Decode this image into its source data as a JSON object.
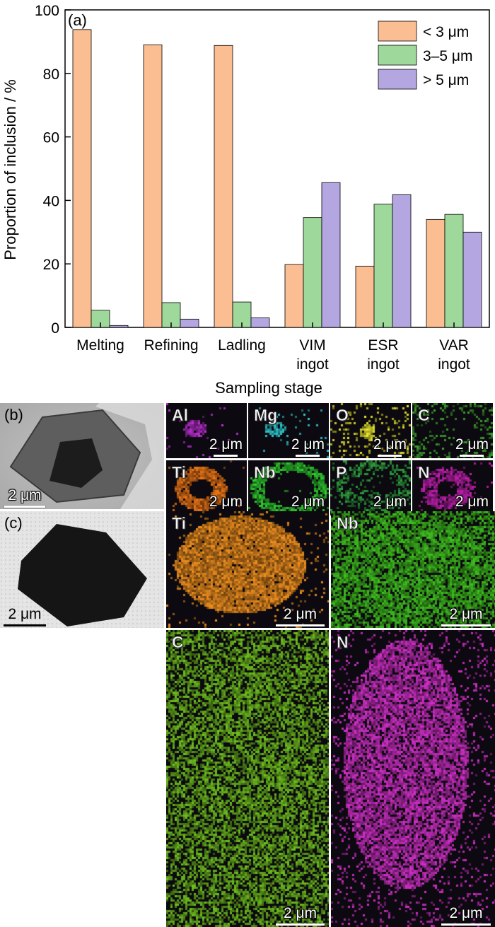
{
  "chart_data": {
    "type": "bar",
    "panel_label": "(a)",
    "categories": [
      [
        "Melting"
      ],
      [
        "Refining"
      ],
      [
        "Ladling"
      ],
      [
        "VIM",
        "ingot"
      ],
      [
        "ESR",
        "ingot"
      ],
      [
        "VAR",
        "ingot"
      ]
    ],
    "series": [
      {
        "name": "< 3 μm",
        "color": "#fbbe92",
        "values": [
          93.8,
          89.0,
          88.8,
          19.8,
          19.3,
          34.0
        ]
      },
      {
        "name": "3–5 μm",
        "color": "#9ed89b",
        "values": [
          5.4,
          7.8,
          8.0,
          34.6,
          38.8,
          35.6
        ]
      },
      {
        "name": "> 5 μm",
        "color": "#b4a6e0",
        "values": [
          0.6,
          2.6,
          3.0,
          45.6,
          41.8,
          30.0
        ]
      }
    ],
    "xlabel": "Sampling stage",
    "ylabel": "Proportion of inclusion / %",
    "ylim": [
      0,
      100
    ],
    "yticks": [
      0,
      20,
      40,
      60,
      80,
      100
    ],
    "grid": false,
    "legend_position": "top-right"
  },
  "panel_b": {
    "label": "(b)",
    "sem_scale": "2 μm",
    "maps": [
      {
        "element": "Al",
        "scale": "2 μm",
        "color": "#c030d8"
      },
      {
        "element": "Mg",
        "scale": "2 μm",
        "color": "#30c8d0"
      },
      {
        "element": "O",
        "scale": "2 μm",
        "color": "#e8e830"
      },
      {
        "element": "C",
        "scale": "2 μm",
        "color": "#40a030"
      },
      {
        "element": "Ti",
        "scale": "2 μm",
        "color": "#f07818"
      },
      {
        "element": "Nb",
        "scale": "2 μm",
        "color": "#30d030"
      },
      {
        "element": "P",
        "scale": "2 μm",
        "color": "#30a040"
      },
      {
        "element": "N",
        "scale": "2 μm",
        "color": "#c020b0"
      }
    ]
  },
  "panel_c": {
    "label": "(c)",
    "sem_scale": "2 μm",
    "maps": [
      {
        "element": "Ti",
        "scale": "2 μm",
        "color": "#f09020"
      },
      {
        "element": "Nb",
        "scale": "2 μm",
        "color": "#40c020"
      },
      {
        "element": "C",
        "scale": "2 μm",
        "color": "#70c020"
      },
      {
        "element": "N",
        "scale": "2 μm",
        "color": "#d030c8"
      }
    ]
  }
}
